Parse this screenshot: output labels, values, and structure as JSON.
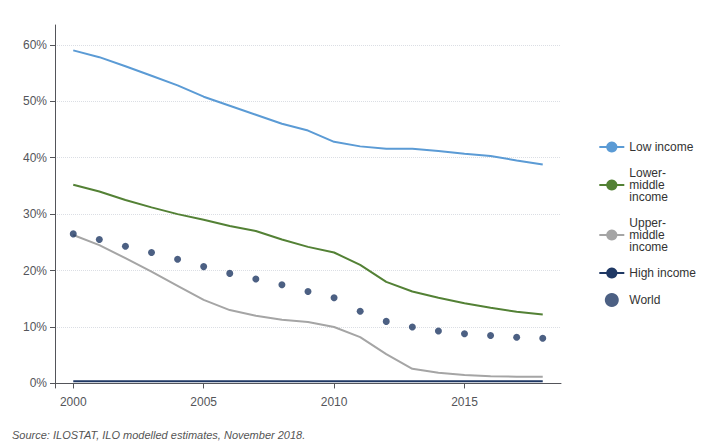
{
  "chart_data": {
    "type": "line",
    "annotations": [
      "Source: ILOSTAT, ILO modelled estimates, November 2018."
    ],
    "x": [
      2000,
      2001,
      2002,
      2003,
      2004,
      2005,
      2006,
      2007,
      2008,
      2009,
      2010,
      2011,
      2012,
      2013,
      2014,
      2015,
      2016,
      2017,
      2018
    ],
    "series": [
      {
        "name": "Low income",
        "type": "line",
        "marker": "none",
        "color": "#5b9bd5",
        "values": [
          0.59,
          0.578,
          0.562,
          0.545,
          0.528,
          0.508,
          0.492,
          0.476,
          0.46,
          0.448,
          0.428,
          0.42,
          0.416,
          0.416,
          0.412,
          0.407,
          0.403,
          0.395,
          0.388
        ]
      },
      {
        "name": "Lower-\nmiddle\nincome",
        "type": "line",
        "marker": "none",
        "color": "#538135",
        "values": [
          0.352,
          0.34,
          0.325,
          0.312,
          0.3,
          0.29,
          0.279,
          0.27,
          0.255,
          0.242,
          0.232,
          0.21,
          0.18,
          0.163,
          0.152,
          0.142,
          0.134,
          0.127,
          0.122
        ]
      },
      {
        "name": "Upper-\nmiddle\nincome",
        "type": "line",
        "marker": "none",
        "color": "#a5a5a5",
        "values": [
          0.263,
          0.245,
          0.222,
          0.198,
          0.173,
          0.148,
          0.13,
          0.12,
          0.113,
          0.109,
          0.1,
          0.082,
          0.052,
          0.026,
          0.019,
          0.015,
          0.013,
          0.012,
          0.012
        ]
      },
      {
        "name": "High income",
        "type": "line",
        "marker": "none",
        "color": "#1f3864",
        "values": [
          0.004,
          0.004,
          0.004,
          0.004,
          0.004,
          0.004,
          0.004,
          0.004,
          0.004,
          0.004,
          0.004,
          0.004,
          0.004,
          0.004,
          0.004,
          0.004,
          0.004,
          0.004,
          0.004
        ]
      },
      {
        "name": "World",
        "type": "scatter",
        "marker": "circle",
        "color": "#1f3864",
        "values": [
          0.265,
          0.255,
          0.243,
          0.232,
          0.22,
          0.207,
          0.195,
          0.185,
          0.175,
          0.163,
          0.152,
          0.128,
          0.11,
          0.1,
          0.093,
          0.088,
          0.085,
          0.082,
          0.08
        ]
      }
    ],
    "xlim": [
      1999.3,
      2018.7
    ],
    "xticks": [
      2000,
      2005,
      2010,
      2015
    ],
    "ylim": [
      -0.008,
      0.635
    ],
    "yticks": [
      {
        "value": 0.0,
        "label": "0%"
      },
      {
        "value": 0.1,
        "label": "10%"
      },
      {
        "value": 0.2,
        "label": "20%"
      },
      {
        "value": 0.3,
        "label": "30%"
      },
      {
        "value": 0.4,
        "label": "40%"
      },
      {
        "value": 0.5,
        "label": "50%"
      },
      {
        "value": 0.6,
        "label": "60%"
      }
    ],
    "grid": true,
    "legend": "right"
  }
}
